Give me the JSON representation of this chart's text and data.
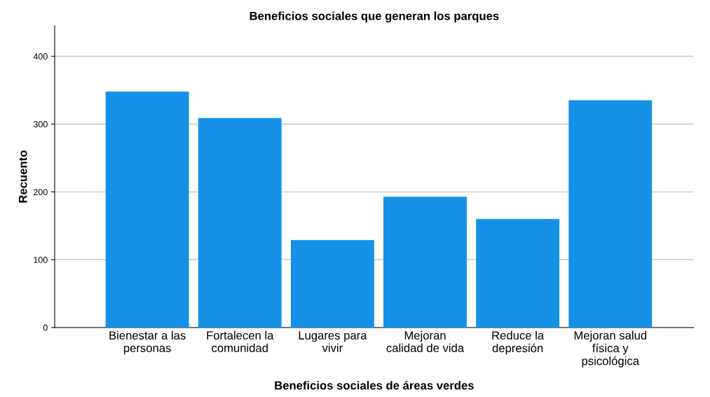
{
  "chart_data": {
    "type": "bar",
    "title": "Beneficios sociales que generan los parques",
    "xlabel": "Beneficios sociales de áreas verdes",
    "ylabel": "Recuento",
    "categories": [
      "Bienestar a las\npersonas",
      "Fortalecen la\ncomunidad",
      "Lugares para\nvivir",
      "Mejoran\ncalidad de vida",
      "Reduce la\ndepresión",
      "Mejoran salud\nfísica y\npsicológica"
    ],
    "values": [
      348,
      309,
      129,
      193,
      160,
      335
    ],
    "color": "#1591e8",
    "ylim": [
      0,
      445
    ],
    "yticks": [
      0,
      100,
      200,
      300,
      400
    ],
    "grid": "y"
  }
}
